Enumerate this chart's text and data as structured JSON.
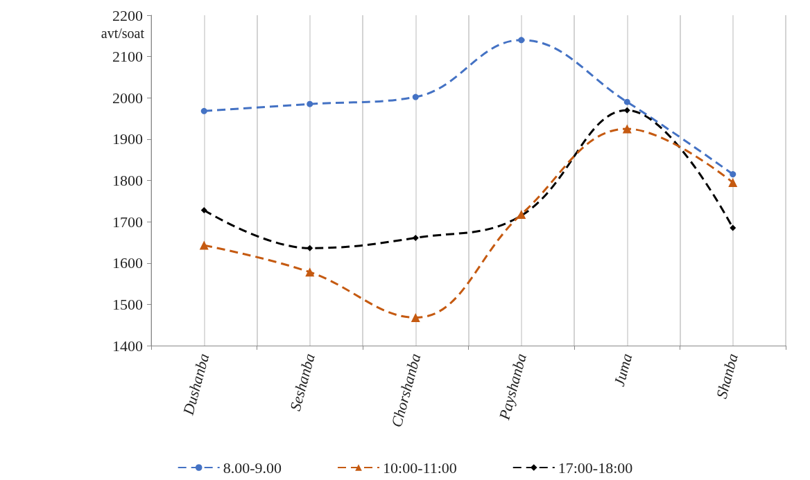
{
  "chart_data": {
    "type": "line",
    "ylabel": "avt/soat",
    "categories": [
      "Dushanba",
      "Seshanba",
      "Chorshanba",
      "Payshanba",
      "Juma",
      "Shanba"
    ],
    "series": [
      {
        "name": "8.00-9.00",
        "color": "#4472c4",
        "marker": "circle",
        "values": [
          1968,
          1985,
          2002,
          2140,
          1990,
          1815
        ]
      },
      {
        "name": "10:00-11:00",
        "color": "#c55a11",
        "marker": "triangle",
        "values": [
          1643,
          1578,
          1468,
          1718,
          1925,
          1795
        ]
      },
      {
        "name": "17:00-18:00",
        "color": "#000000",
        "marker": "diamond",
        "values": [
          1728,
          1636,
          1661,
          1715,
          1970,
          1685
        ]
      }
    ],
    "ylim": [
      1400,
      2200
    ],
    "yticks": [
      1400,
      1500,
      1600,
      1700,
      1800,
      1900,
      2000,
      2100,
      2200
    ],
    "grid": "x",
    "legend": "bottom",
    "line_style": "dashed"
  }
}
